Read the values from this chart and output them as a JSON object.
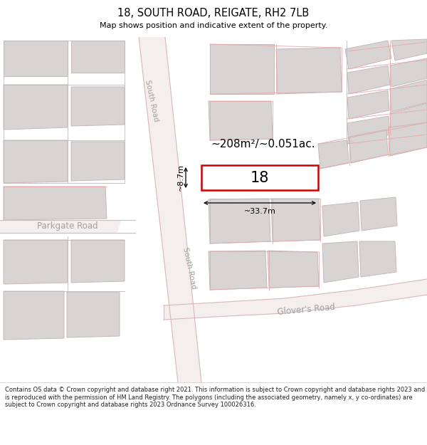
{
  "title": "18, SOUTH ROAD, REIGATE, RH2 7LB",
  "subtitle": "Map shows position and indicative extent of the property.",
  "footer": "Contains OS data © Crown copyright and database right 2021. This information is subject to Crown copyright and database rights 2023 and is reproduced with the permission of HM Land Registry. The polygons (including the associated geometry, namely x, y co-ordinates) are subject to Crown copyright and database rights 2023 Ordnance Survey 100026316.",
  "area_label": "~208m²/~0.051ac.",
  "property_number": "18",
  "width_label": "~33.7m",
  "height_label": "~8.7m",
  "road_label_south_upper": "South Road",
  "road_label_south_lower": "South Road",
  "road_label_parkgate": "Parkgate Road",
  "road_label_glovers": "Glover's Road",
  "bg_color": "#ffffff",
  "map_bg": "#ffffff",
  "road_fill": "#f0e8e8",
  "block_color": "#d8d4d4",
  "block_outline": "#c8b8b8",
  "parcel_line": "#e8a8a8",
  "property_fill": "#ffffff",
  "property_outline": "#cc0000",
  "dim_color": "#000000",
  "road_text_color": "#a0a0a0",
  "text_color": "#000000"
}
